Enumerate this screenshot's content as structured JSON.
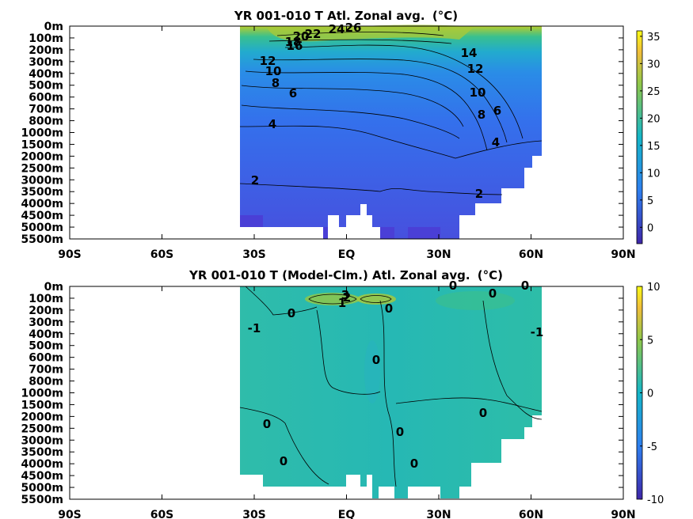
{
  "chart_data": [
    {
      "type": "heatmap",
      "title": "YR 001-010 T Atl. Zonal avg.",
      "title_unit": "(°C)",
      "xticks": [
        "90S",
        "60S",
        "30S",
        "EQ",
        "30N",
        "60N",
        "90N"
      ],
      "yticks": [
        "0m",
        "100m",
        "200m",
        "300m",
        "400m",
        "500m",
        "600m",
        "700m",
        "800m",
        "1000m",
        "1500m",
        "2000m",
        "2500m",
        "3000m",
        "3500m",
        "4000m",
        "4500m",
        "5000m",
        "5500m"
      ],
      "colorbar": {
        "range": [
          -3,
          36
        ],
        "ticks": [
          "0",
          "5",
          "10",
          "15",
          "20",
          "25",
          "30",
          "35"
        ]
      },
      "contour_labels": [
        "26",
        "24",
        "22",
        "20",
        "18",
        "16",
        "14",
        "12",
        "12",
        "10",
        "10",
        "8",
        "8",
        "6",
        "6",
        "4",
        "4",
        "2",
        "2"
      ],
      "colors": {
        "low": "#3e26a8",
        "mid": "#1fb0c4",
        "high": "#f9fb15"
      }
    },
    {
      "type": "heatmap",
      "title": "YR 001-010 T (Model-Clm.) Atl. Zonal avg.",
      "title_unit": "(°C)",
      "xticks": [
        "90S",
        "60S",
        "30S",
        "EQ",
        "30N",
        "60N",
        "90N"
      ],
      "yticks": [
        "0m",
        "100m",
        "200m",
        "300m",
        "400m",
        "500m",
        "600m",
        "700m",
        "800m",
        "1000m",
        "1500m",
        "2000m",
        "2500m",
        "3000m",
        "3500m",
        "4000m",
        "4500m",
        "5000m",
        "5500m"
      ],
      "colorbar": {
        "range": [
          -10,
          10
        ],
        "ticks": [
          "10",
          "5",
          "0",
          "-5",
          "-10"
        ]
      },
      "contour_labels": [
        "0",
        "0",
        "0",
        "0",
        "0",
        "0",
        "0",
        "0",
        "0",
        "0",
        "0",
        "-1",
        "-1",
        "1",
        "3",
        "2"
      ],
      "colors": {
        "low": "#3e26a8",
        "mid": "#1fb0c4",
        "high": "#f9fb15"
      }
    }
  ]
}
